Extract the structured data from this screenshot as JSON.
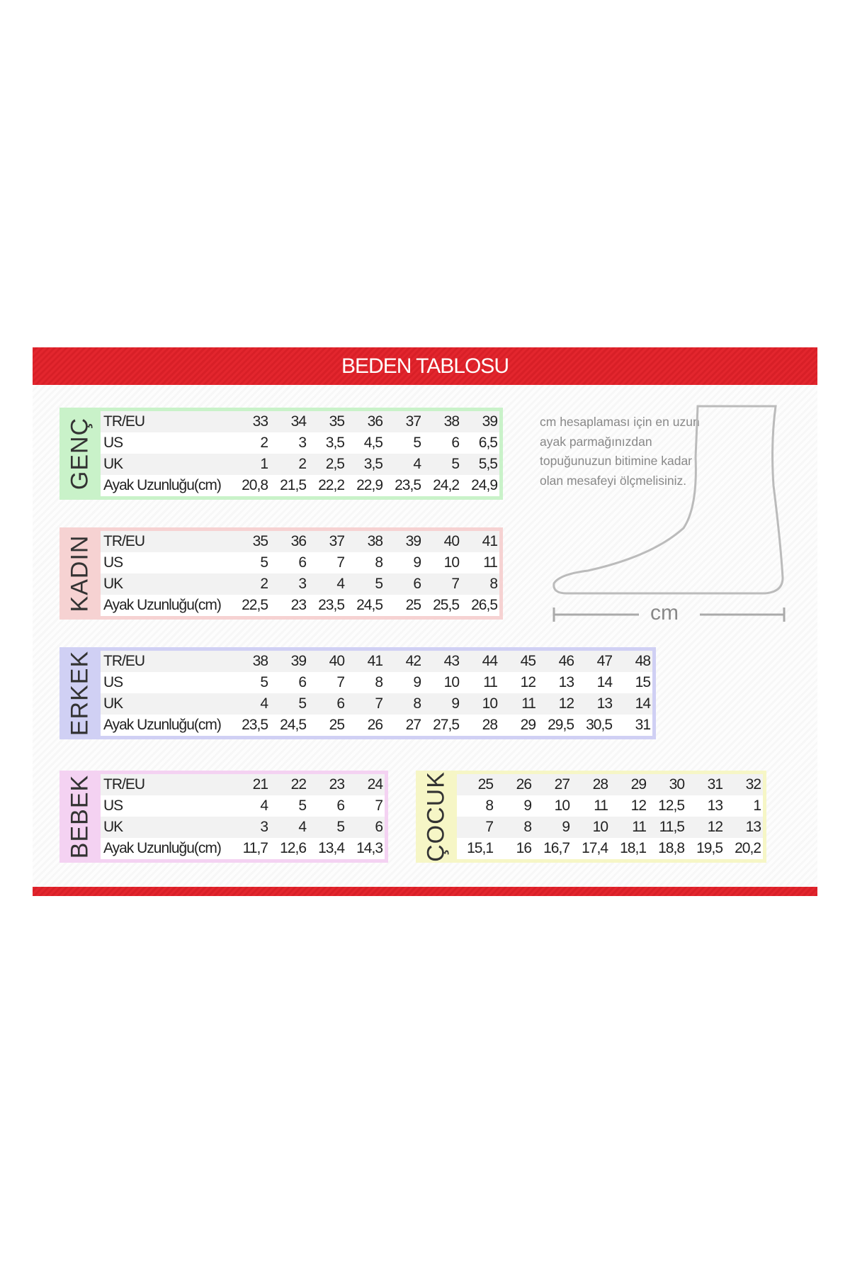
{
  "title": "BEDEN TABLOSU",
  "note": "cm hesaplaması için en uzun ayak parmağınızdan topuğunuzun bitimine kadar olan mesafeyi ölçmelisiniz.",
  "cm_label": "cm",
  "colors": {
    "header": "#e3262e",
    "genc": "#c9f2c9",
    "kadin": "#f6d2d2",
    "erkek": "#d0d0f4",
    "bebek": "#f4d2f2",
    "cocuk": "#f6f6c6"
  },
  "tables": [
    {
      "name": "GENÇ",
      "rows": [
        [
          "TR/EU",
          "33",
          "34",
          "35",
          "36",
          "37",
          "38",
          "39"
        ],
        [
          "US",
          "2",
          "3",
          "3,5",
          "4,5",
          "5",
          "6",
          "6,5"
        ],
        [
          "UK",
          "1",
          "2",
          "2,5",
          "3,5",
          "4",
          "5",
          "5,5"
        ],
        [
          "Ayak Uzunluğu(cm)",
          "20,8",
          "21,5",
          "22,2",
          "22,9",
          "23,5",
          "24,2",
          "24,9"
        ]
      ]
    },
    {
      "name": "KADIN",
      "rows": [
        [
          "TR/EU",
          "35",
          "36",
          "37",
          "38",
          "39",
          "40",
          "41"
        ],
        [
          "US",
          "5",
          "6",
          "7",
          "8",
          "9",
          "10",
          "11"
        ],
        [
          "UK",
          "2",
          "3",
          "4",
          "5",
          "6",
          "7",
          "8"
        ],
        [
          "Ayak Uzunluğu(cm)",
          "22,5",
          "23",
          "23,5",
          "24,5",
          "25",
          "25,5",
          "26,5"
        ]
      ]
    },
    {
      "name": "ERKEK",
      "rows": [
        [
          "TR/EU",
          "38",
          "39",
          "40",
          "41",
          "42",
          "43",
          "44",
          "45",
          "46",
          "47",
          "48"
        ],
        [
          "US",
          "5",
          "6",
          "7",
          "8",
          "9",
          "10",
          "11",
          "12",
          "13",
          "14",
          "15"
        ],
        [
          "UK",
          "4",
          "5",
          "6",
          "7",
          "8",
          "9",
          "10",
          "11",
          "12",
          "13",
          "14"
        ],
        [
          "Ayak Uzunluğu(cm)",
          "23,5",
          "24,5",
          "25",
          "26",
          "27",
          "27,5",
          "28",
          "29",
          "29,5",
          "30,5",
          "31"
        ]
      ]
    },
    {
      "name": "BEBEK",
      "rows": [
        [
          "TR/EU",
          "21",
          "22",
          "23",
          "24"
        ],
        [
          "US",
          "4",
          "5",
          "6",
          "7"
        ],
        [
          "UK",
          "3",
          "4",
          "5",
          "6"
        ],
        [
          "Ayak Uzunluğu(cm)",
          "11,7",
          "12,6",
          "13,4",
          "14,3"
        ]
      ]
    },
    {
      "name": "ÇOCUK",
      "rows": [
        [
          "25",
          "26",
          "27",
          "28",
          "29",
          "30",
          "31",
          "32"
        ],
        [
          "8",
          "9",
          "10",
          "11",
          "12",
          "12,5",
          "13",
          "1"
        ],
        [
          "7",
          "8",
          "9",
          "10",
          "11",
          "11,5",
          "12",
          "13"
        ],
        [
          "15,1",
          "16",
          "16,7",
          "17,4",
          "18,1",
          "18,8",
          "19,5",
          "20,2"
        ]
      ]
    }
  ]
}
